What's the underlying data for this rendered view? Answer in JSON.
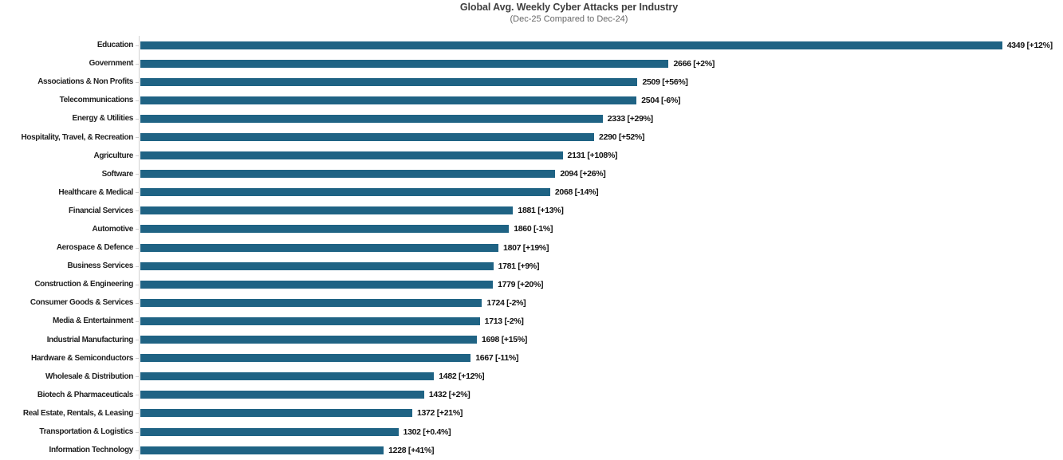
{
  "title": "Global Avg. Weekly Cyber Attacks per Industry",
  "subtitle": "(Dec-25 Compared to Dec-24)",
  "colors": {
    "bar": "#1f6384",
    "axis_line": "#d2d2d2",
    "tick": "#c9c9c9",
    "title_text": "#3f3f3f",
    "subtitle_text": "#686868",
    "category_text": "#1f1f1f",
    "value_text": "#111111"
  },
  "chart_data": {
    "type": "bar",
    "orientation": "horizontal",
    "title": "Global Avg. Weekly Cyber Attacks per Industry",
    "subtitle": "(Dec-25 Compared to Dec-24)",
    "xlabel": "",
    "ylabel": "",
    "xlim": [
      0,
      4660
    ],
    "grid": false,
    "legend": false,
    "value_label_format": "{value} [{change}]",
    "categories": [
      "Education",
      "Government",
      "Associations & Non Profits",
      "Telecommunications",
      "Energy & Utilities",
      "Hospitality, Travel, & Recreation",
      "Agriculture",
      "Software",
      "Healthcare & Medical",
      "Financial Services",
      "Automotive",
      "Aerospace & Defence",
      "Business Services",
      "Construction & Engineering",
      "Consumer Goods & Services",
      "Media & Entertainment",
      "Industrial Manufacturing",
      "Hardware & Semiconductors",
      "Wholesale & Distribution",
      "Biotech & Pharmaceuticals",
      "Real Estate, Rentals, & Leasing",
      "Transportation & Logistics",
      "Information Technology"
    ],
    "values": [
      4349,
      2666,
      2509,
      2504,
      2333,
      2290,
      2131,
      2094,
      2068,
      1881,
      1860,
      1807,
      1781,
      1779,
      1724,
      1713,
      1698,
      1667,
      1482,
      1432,
      1372,
      1302,
      1228
    ],
    "changes": [
      "+12%",
      "+2%",
      "+56%",
      "-6%",
      "+29%",
      "+52%",
      "+108%",
      "+26%",
      "-14%",
      "+13%",
      "-1%",
      "+19%",
      "+9%",
      "+20%",
      "-2%",
      "-2%",
      "+15%",
      "-11%",
      "+12%",
      "+2%",
      "+21%",
      "+0.4%",
      "+41%"
    ]
  }
}
